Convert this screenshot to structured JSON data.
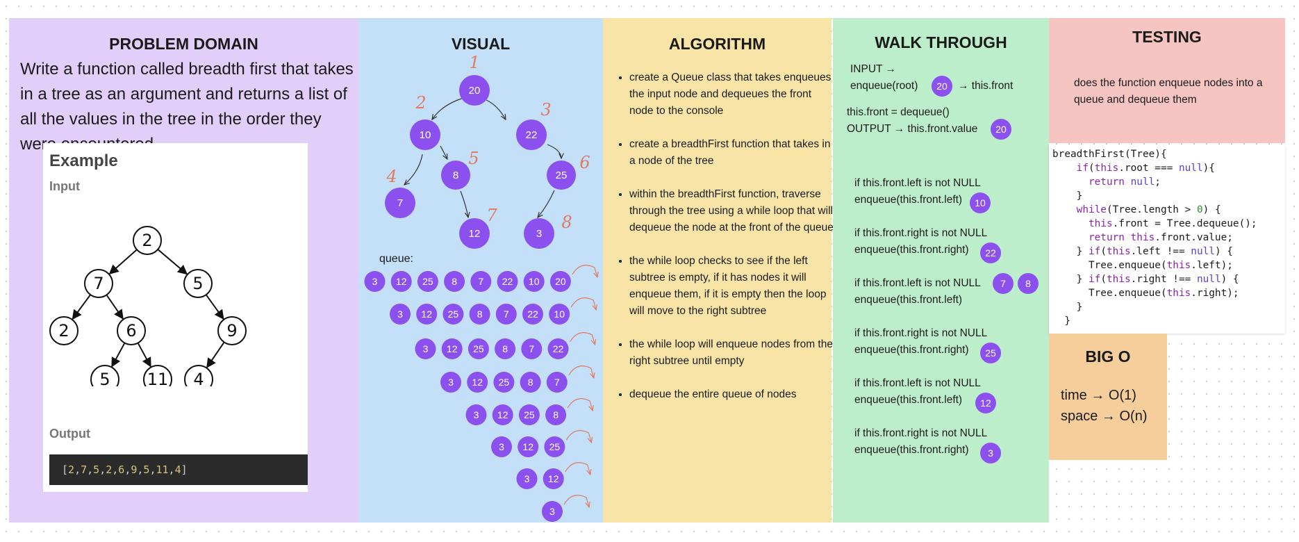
{
  "problem": {
    "heading": "PROBLEM DOMAIN",
    "description": "Write a function called breadth first that takes in a tree as an argument and returns a list of all the values in the tree in the order they were encountered.",
    "example": {
      "title": "Example",
      "input_label": "Input",
      "output_label": "Output",
      "tree_nodes": [
        "2",
        "7",
        "5",
        "2",
        "6",
        "9",
        "5",
        "11",
        "4"
      ],
      "output_values": [
        "2",
        "7",
        "5",
        "2",
        "6",
        "9",
        "5",
        "11",
        "4"
      ]
    }
  },
  "visual": {
    "heading": "VISUAL",
    "tree_nodes": [
      "20",
      "10",
      "22",
      "8",
      "25",
      "7",
      "12",
      "3"
    ],
    "order_marks": [
      "1",
      "2",
      "3",
      "4",
      "5",
      "6",
      "7",
      "8"
    ],
    "queue_label": "queue:",
    "queue_rows": [
      [
        "3",
        "12",
        "25",
        "8",
        "7",
        "22",
        "10",
        "20"
      ],
      [
        "3",
        "12",
        "25",
        "8",
        "7",
        "22",
        "10"
      ],
      [
        "3",
        "12",
        "25",
        "8",
        "7",
        "22"
      ],
      [
        "3",
        "12",
        "25",
        "8",
        "7"
      ],
      [
        "3",
        "12",
        "25",
        "8"
      ],
      [
        "3",
        "12",
        "25"
      ],
      [
        "3",
        "12"
      ],
      [
        "3"
      ]
    ]
  },
  "algorithm": {
    "heading": "ALGORITHM",
    "steps": [
      "create a Queue class that takes enqueues the input node and dequeues the front node to the console",
      "create a breadthFirst function that takes in a node of the tree",
      "within the breadthFirst  function, traverse through the tree using a while loop that will dequeue the node at the front of the queue",
      "the while loop checks to see if the left subtree is empty, if it has nodes it will enqueue them, if it is empty then the loop will move to the right subtree",
      "the while loop will enqueue nodes from the right subtree until empty",
      "dequeue the entire queue of nodes"
    ]
  },
  "walkthrough": {
    "heading": "WALK THROUGH",
    "input_line": "INPUT →",
    "enqueue_root": "enqueue(root)",
    "root_value": "20",
    "to_front": "→ this.front",
    "front_dequeue": "this.front = dequeue()",
    "output_line": "OUTPUT → this.front.value",
    "output_value": "20",
    "checks": [
      {
        "line1": "if this.front.left is not NULL",
        "line2": "enqueue(this.front.left)",
        "values": [
          "10"
        ]
      },
      {
        "line1": "if this.front.right is not NULL",
        "line2": "enqueue(this.front.right)",
        "values": [
          "22"
        ]
      },
      {
        "line1": "if this.front.left is not NULL",
        "line2": "enqueue(this.front.left)",
        "values": [
          "7",
          "8"
        ]
      },
      {
        "line1": "if this.front.right is not NULL",
        "line2": "enqueue(this.front.right)",
        "values": [
          "25"
        ]
      },
      {
        "line1": "if this.front.left is not NULL",
        "line2": "enqueue(this.front.left)",
        "values": [
          "12"
        ]
      },
      {
        "line1": "if this.front.right is not NULL",
        "line2": "enqueue(this.front.right)",
        "values": [
          "3"
        ]
      }
    ]
  },
  "testing": {
    "heading": "TESTING",
    "description": "does the function enqueue nodes into a queue and dequeue them"
  },
  "code": [
    "breadthFirst(Tree){",
    "    if(this.root === null){",
    "      return null;",
    "    }",
    "    while(Tree.length > 0) {",
    "      this.front = Tree.dequeue();",
    "      return this.front.value;",
    "    } if(this.left !== null) {",
    "      Tree.enqueue(this.left);",
    "    } if(this.right !== null) {",
    "      Tree.enqueue(this.right);",
    "    }",
    "  }"
  ],
  "bigo": {
    "heading": "BIG O",
    "time": "time → O(1)",
    "space": "space → O(n)"
  },
  "colors": {
    "node_purple": "#8c50ee",
    "handwriting": "#e07a62",
    "problem_bg": "#e1cffa",
    "visual_bg": "#c4e0f9",
    "algorithm_bg": "#f8e4a6",
    "walkthrough_bg": "#bdeecb",
    "testing_bg": "#f6c5c1",
    "bigo_bg": "#f6ce9b"
  }
}
